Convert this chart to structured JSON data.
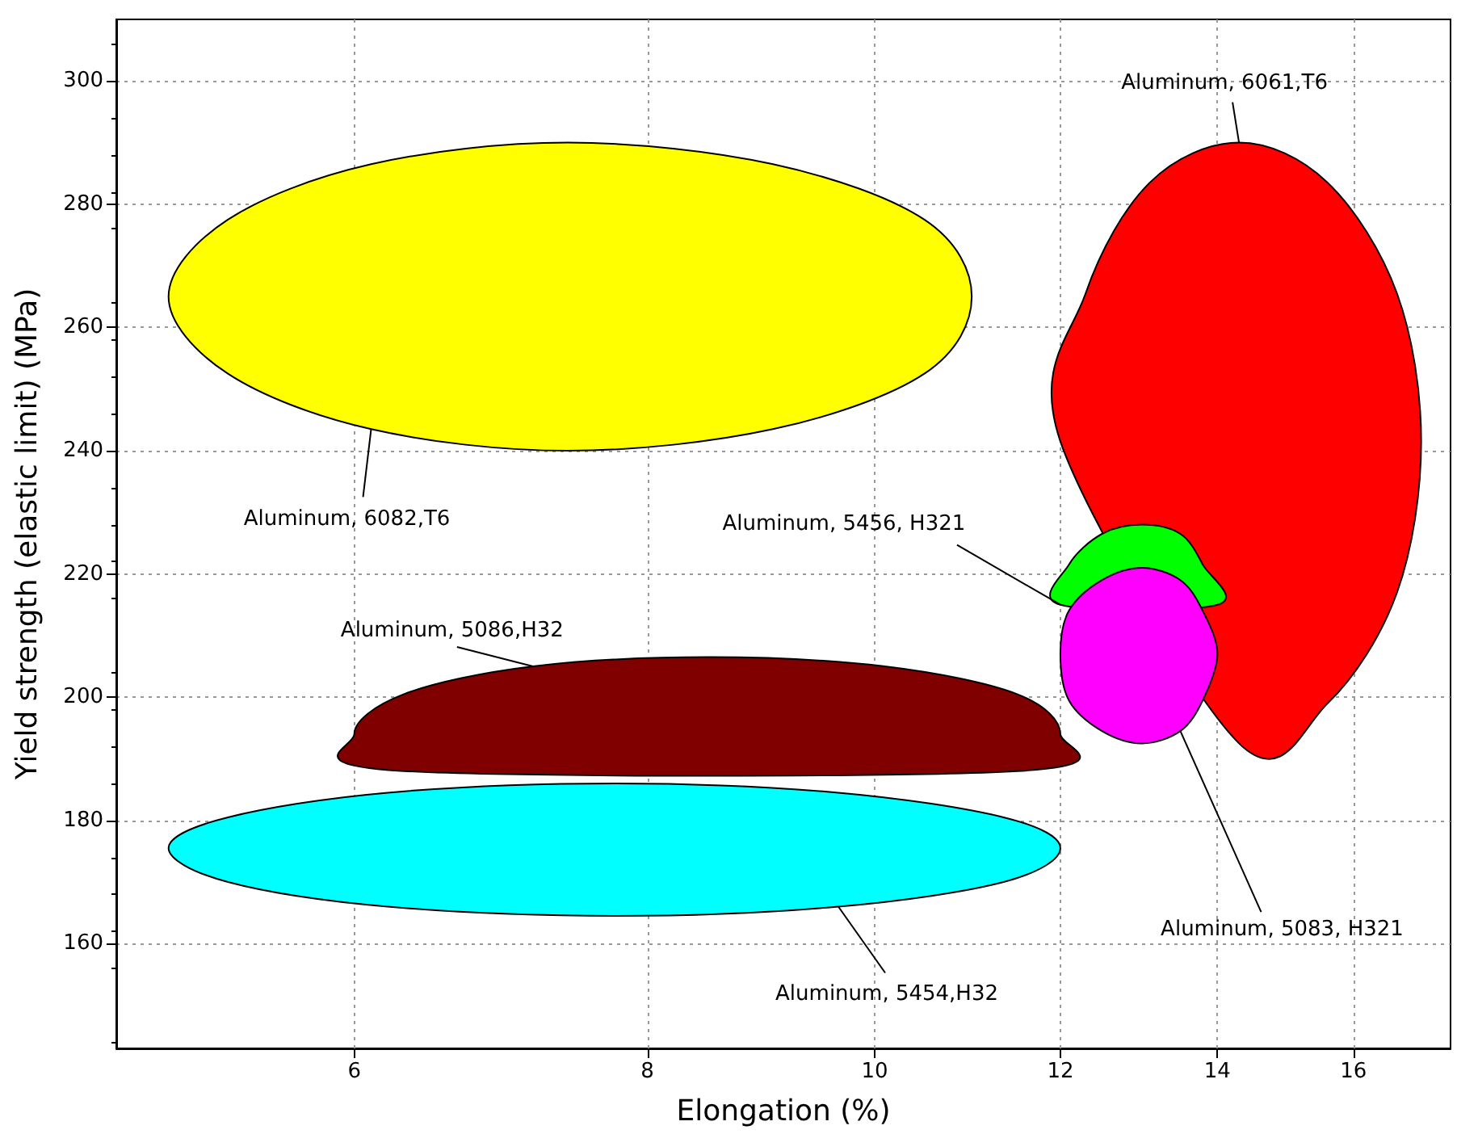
{
  "chart_data": {
    "type": "area",
    "xlabel": "Elongation (%)",
    "ylabel": "Yield strength (elastic limit) (MPa)",
    "log": "x",
    "grid": true,
    "xlim": [
      4.75,
      17.6
    ],
    "xticks": [
      6,
      8,
      10,
      12,
      14,
      16
    ],
    "ylim": [
      143,
      310
    ],
    "yticks": [
      160,
      180,
      200,
      220,
      240,
      260,
      280,
      300
    ],
    "series": [
      {
        "name": "Aluminum, 6082,T6",
        "color": "#ffff00",
        "x": [
          11.0,
          10.5,
          9.05,
          7.4,
          6.1,
          5.3,
          5.0,
          5.3,
          6.1,
          7.4,
          9.05,
          10.5
        ],
        "values": [
          265,
          277.5,
          286.5,
          290,
          286.5,
          277.5,
          265,
          252.5,
          243.5,
          240,
          243.5,
          252.5
        ]
      },
      {
        "name": "Aluminum, 6061,T6",
        "color": "#ff0000",
        "x": [
          17.1,
          16.7,
          15.6,
          14.3,
          13.1,
          12.3,
          12.0,
          null,
          null,
          14.3,
          15.6,
          16.7
        ],
        "values": [
          241.5,
          265.5,
          283.5,
          290,
          283.5,
          265.5,
          241.5,
          null,
          null,
          192.5,
          199,
          217
        ]
      },
      {
        "name": "Aluminum, 5456, H321",
        "color": "#00ff00",
        "x": [
          14.0,
          13.8,
          13.5,
          13.0,
          12.5,
          12.1,
          12.0,
          null,
          null,
          null,
          null,
          null
        ],
        "values": [
          215,
          221.5,
          226.5,
          228,
          226.5,
          221.5,
          215,
          null,
          null,
          null,
          null,
          null
        ]
      },
      {
        "name": "Aluminum, 5083, H321",
        "color": "#ff00ff",
        "x": [
          14.0,
          13.8,
          13.5,
          13.0,
          12.5,
          12.1,
          12.0,
          12.1,
          12.5,
          13.0,
          13.5,
          13.8
        ],
        "values": [
          207,
          214,
          219,
          221,
          219,
          214,
          207,
          199.5,
          194.5,
          192.5,
          194.5,
          199.5
        ]
      },
      {
        "name": "Aluminum, 5086,H32",
        "color": "#800000",
        "x": [
          12.0,
          11.5,
          10.1,
          8.5,
          7.15,
          6.3,
          6.0,
          6.3,
          null,
          null,
          null,
          11.5
        ],
        "values": [
          194,
          200.5,
          205,
          206.5,
          205,
          200.5,
          194,
          188,
          null,
          null,
          null,
          188
        ]
      },
      {
        "name": "Aluminum, 5454,H32",
        "color": "#00ffff",
        "x": [
          12.0,
          11.35,
          9.65,
          7.75,
          6.2,
          5.3,
          5.0,
          5.3,
          6.2,
          7.75,
          9.65,
          11.35
        ],
        "values": [
          175.5,
          180.5,
          184.5,
          186,
          184.5,
          180.5,
          175.5,
          170,
          166,
          164.5,
          166,
          170
        ]
      }
    ]
  }
}
